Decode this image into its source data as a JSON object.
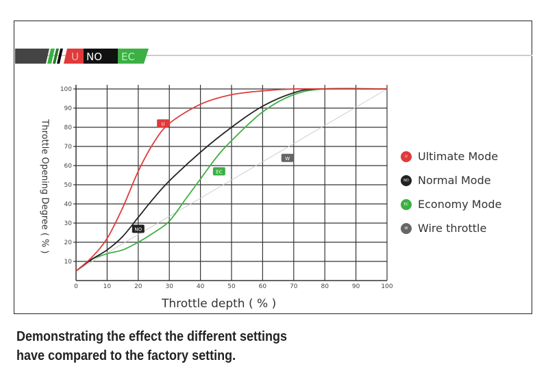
{
  "banner": {
    "labels": [
      "U",
      "NO",
      "EC"
    ]
  },
  "chart_data": {
    "type": "line",
    "xlabel": "Throttle depth ( % )",
    "ylabel": "Throttle Opening Degree ( % )",
    "xlim": [
      0,
      100
    ],
    "ylim": [
      0,
      100
    ],
    "xticks": [
      0,
      10,
      20,
      30,
      40,
      50,
      60,
      70,
      80,
      90,
      100
    ],
    "yticks": [
      10,
      20,
      30,
      40,
      50,
      60,
      70,
      80,
      90,
      100
    ],
    "grid": true,
    "legend_placement": "right",
    "series": [
      {
        "name": "Ultimate Mode",
        "tag": "U",
        "color": "#e03a3a",
        "x": [
          0,
          5,
          10,
          15,
          20,
          25,
          30,
          40,
          50,
          60,
          70,
          80,
          100
        ],
        "y": [
          5,
          12,
          22,
          38,
          57,
          72,
          82,
          92,
          97,
          99,
          100,
          100,
          100
        ],
        "tag_at": [
          28,
          82
        ]
      },
      {
        "name": "Normal Mode",
        "tag": "NO",
        "color": "#222222",
        "x": [
          0,
          5,
          10,
          15,
          20,
          25,
          30,
          40,
          50,
          60,
          70,
          78,
          100
        ],
        "y": [
          5,
          11,
          16,
          23,
          33,
          43,
          52,
          67,
          80,
          91,
          98,
          100,
          100
        ],
        "tag_at": [
          20,
          27
        ]
      },
      {
        "name": "Economy Mode",
        "tag": "EC",
        "color": "#3cb043",
        "x": [
          0,
          5,
          10,
          15,
          20,
          25,
          30,
          35,
          40,
          45,
          50,
          60,
          70,
          80,
          100
        ],
        "y": [
          5,
          11,
          14,
          16,
          20,
          25,
          31,
          42,
          53,
          64,
          73,
          88,
          97,
          100,
          100
        ],
        "tag_at": [
          46,
          57
        ]
      },
      {
        "name": "Wire throttle",
        "tag": "W",
        "color": "#666666",
        "x": [
          0,
          100
        ],
        "y": [
          5,
          100
        ],
        "tag_at": [
          68,
          64
        ]
      }
    ]
  },
  "caption": [
    "Demonstrating the effect the different settings",
    "have compared to the factory setting."
  ]
}
